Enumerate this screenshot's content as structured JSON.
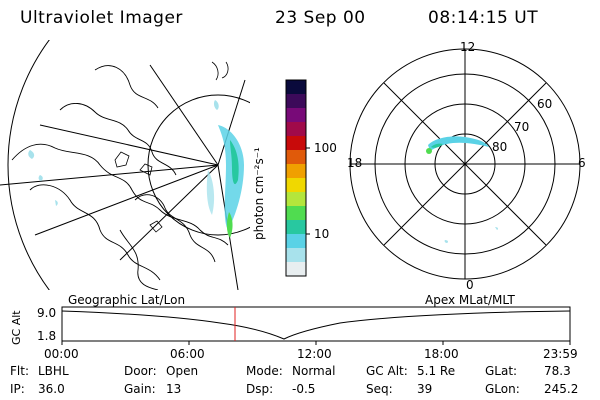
{
  "header": {
    "instrument": "Ultraviolet Imager",
    "date": "23 Sep 00",
    "time": "08:14:15 UT"
  },
  "colorbar": {
    "label": "photon cm⁻²s⁻¹",
    "ticks": [
      "100",
      "10"
    ],
    "colors": [
      "#0a0a3c",
      "#3c0a5a",
      "#780a78",
      "#a00a4a",
      "#c80a0a",
      "#e05a0a",
      "#f0a000",
      "#f0d800",
      "#b4e63c",
      "#50dc50",
      "#28c8a0",
      "#5ad2e6",
      "#a8e2ec",
      "#e8eef0"
    ]
  },
  "polar_plot": {
    "mlt_labels": [
      "12",
      "18",
      "6",
      "0"
    ],
    "lat_labels": [
      "60",
      "70",
      "80"
    ]
  },
  "altitude_track": {
    "left_label": "Geographic Lat/Lon",
    "right_label": "Apex MLat/MLT",
    "axis_label": "GC Alt",
    "y_ticks": [
      "9.0",
      "1.8"
    ],
    "x_ticks": [
      "00:00",
      "06:00",
      "12:00",
      "18:00",
      "23:59"
    ],
    "cursor_color": "#e02020"
  },
  "status": {
    "row1": [
      {
        "label": "Flt:",
        "value": "LBHL"
      },
      {
        "label": "Door:",
        "value": "Open"
      },
      {
        "label": "Mode:",
        "value": "Normal"
      },
      {
        "label": "GC Alt:",
        "value": "5.1 Re"
      },
      {
        "label": "GLat:",
        "value": "78.3"
      }
    ],
    "row2": [
      {
        "label": "IP:",
        "value": "36.0"
      },
      {
        "label": "Gain:",
        "value": "13"
      },
      {
        "label": "Dsp:",
        "value": "-0.5"
      },
      {
        "label": "Seq:",
        "value": "39"
      },
      {
        "label": "GLon:",
        "value": "245.2"
      }
    ]
  }
}
